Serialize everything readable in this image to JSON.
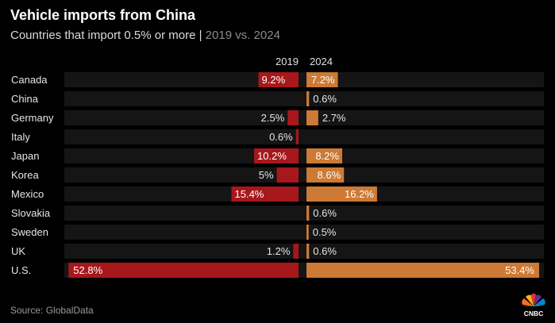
{
  "title": "Vehicle imports from China",
  "subtitle_main": "Countries that import 0.5% or more | ",
  "subtitle_years": "2019 vs. 2024",
  "source": "Source: GlobalData",
  "logo_text": "CNBC",
  "colors": {
    "series_2019": "#a6181b",
    "series_2024": "#cc7a35",
    "row_bg": "#151515",
    "label": "#e6e6e6"
  },
  "chart_data": {
    "type": "bar",
    "orientation": "horizontal-diverging",
    "title": "Vehicle imports from China",
    "subtitle": "Countries that import 0.5% or more | 2019 vs. 2024",
    "unit": "%",
    "categories": [
      "Canada",
      "China",
      "Germany",
      "Italy",
      "Japan",
      "Korea",
      "Mexico",
      "Slovakia",
      "Sweden",
      "UK",
      "U.S."
    ],
    "series": [
      {
        "name": "2019",
        "values": [
          9.2,
          null,
          2.5,
          0.6,
          10.2,
          5,
          15.4,
          null,
          null,
          1.2,
          52.8
        ],
        "labels": [
          "9.2%",
          "",
          "2.5%",
          "0.6%",
          "10.2%",
          "5%",
          "15.4%",
          "",
          "",
          "1.2%",
          "52.8%"
        ]
      },
      {
        "name": "2024",
        "values": [
          7.2,
          0.6,
          2.7,
          null,
          8.2,
          8.6,
          16.2,
          0.6,
          0.5,
          0.6,
          53.4
        ],
        "labels": [
          "7.2%",
          "0.6%",
          "2.7%",
          "",
          "8.2%",
          "8.6%",
          "16.2%",
          "0.6%",
          "0.5%",
          "0.6%",
          "53.4%"
        ]
      }
    ],
    "xlim": [
      0,
      53.4
    ]
  }
}
